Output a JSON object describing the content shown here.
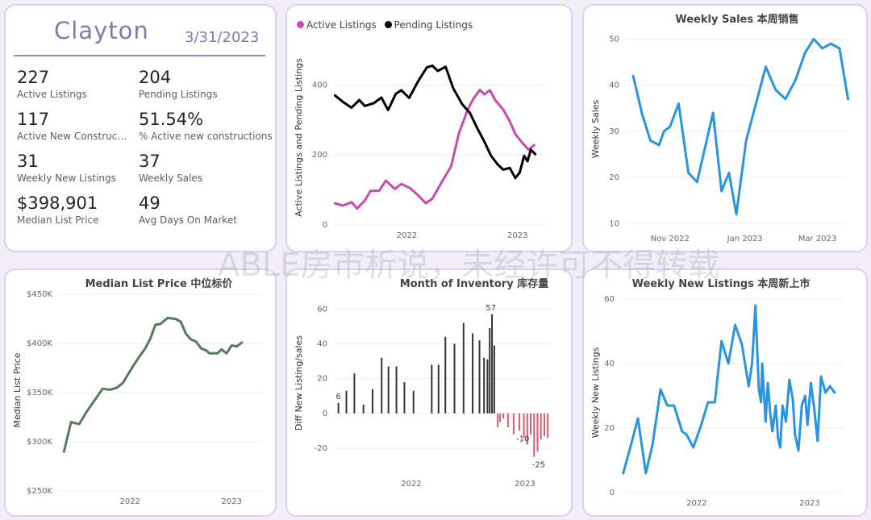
{
  "kpi": {
    "city": "Clayton",
    "date": "3/31/2023",
    "items": [
      {
        "value": "227",
        "label": "Active Listings"
      },
      {
        "value": "204",
        "label": "Pending Listings"
      },
      {
        "value": "117",
        "label": "Active New Constructi..."
      },
      {
        "value": "51.54%",
        "label": "% Active new constructions"
      },
      {
        "value": "31",
        "label": "Weekly New Listings"
      },
      {
        "value": "37",
        "label": "Weekly Sales"
      },
      {
        "value": "$398,901",
        "label": "Median List Price"
      },
      {
        "value": "49",
        "label": "Avg Days On Market"
      }
    ]
  },
  "watermark": "ABLE房市析说，未经许可不得转载",
  "chart_data": [
    {
      "id": "active_pending",
      "type": "line",
      "title": "",
      "legend": [
        "Active Listings",
        "Pending Listings"
      ],
      "colors": [
        "#cc4aae",
        "#000000"
      ],
      "xlabel": "",
      "ylabel": "Active Listings and Pending Listings",
      "x_range": [
        2021.34,
        2023.25
      ],
      "ylim": [
        0,
        500
      ],
      "y_ticks": [
        0,
        200,
        400
      ],
      "x_ticks": [
        {
          "value": 2022.0,
          "label": "2022"
        },
        {
          "value": 2023.0,
          "label": "2023"
        }
      ],
      "series": [
        {
          "name": "Active Listings",
          "points": [
            [
              2021.35,
              62
            ],
            [
              2021.42,
              55
            ],
            [
              2021.5,
              65
            ],
            [
              2021.55,
              47
            ],
            [
              2021.62,
              70
            ],
            [
              2021.67,
              97
            ],
            [
              2021.75,
              98
            ],
            [
              2021.81,
              127
            ],
            [
              2021.89,
              103
            ],
            [
              2021.95,
              117
            ],
            [
              2022.03,
              105
            ],
            [
              2022.1,
              85
            ],
            [
              2022.17,
              62
            ],
            [
              2022.23,
              75
            ],
            [
              2022.32,
              125
            ],
            [
              2022.4,
              168
            ],
            [
              2022.47,
              262
            ],
            [
              2022.55,
              330
            ],
            [
              2022.6,
              360
            ],
            [
              2022.66,
              386
            ],
            [
              2022.7,
              373
            ],
            [
              2022.75,
              385
            ],
            [
              2022.8,
              356
            ],
            [
              2022.87,
              330
            ],
            [
              2022.93,
              296
            ],
            [
              2022.98,
              260
            ],
            [
              2023.04,
              236
            ],
            [
              2023.1,
              215
            ],
            [
              2023.15,
              228
            ]
          ]
        },
        {
          "name": "Pending Listings",
          "points": [
            [
              2021.35,
              370
            ],
            [
              2021.42,
              352
            ],
            [
              2021.5,
              335
            ],
            [
              2021.57,
              357
            ],
            [
              2021.62,
              340
            ],
            [
              2021.7,
              348
            ],
            [
              2021.77,
              364
            ],
            [
              2021.83,
              328
            ],
            [
              2021.9,
              375
            ],
            [
              2021.95,
              385
            ],
            [
              2022.02,
              363
            ],
            [
              2022.1,
              410
            ],
            [
              2022.18,
              450
            ],
            [
              2022.23,
              455
            ],
            [
              2022.28,
              440
            ],
            [
              2022.35,
              452
            ],
            [
              2022.42,
              390
            ],
            [
              2022.5,
              345
            ],
            [
              2022.57,
              320
            ],
            [
              2022.63,
              280
            ],
            [
              2022.7,
              238
            ],
            [
              2022.76,
              198
            ],
            [
              2022.82,
              173
            ],
            [
              2022.87,
              158
            ],
            [
              2022.93,
              163
            ],
            [
              2022.98,
              134
            ],
            [
              2023.02,
              150
            ],
            [
              2023.06,
              198
            ],
            [
              2023.09,
              182
            ],
            [
              2023.12,
              215
            ],
            [
              2023.16,
              202
            ]
          ]
        }
      ]
    },
    {
      "id": "weekly_sales",
      "type": "line",
      "title": "Weekly Sales 本周销售",
      "xlabel": "",
      "ylabel": "Weekly Sales",
      "colors": [
        "#2b94de"
      ],
      "x_range": [
        -6,
        174
      ],
      "ylim": [
        9,
        52
      ],
      "y_ticks": [
        10,
        20,
        30,
        40,
        50
      ],
      "x_ticks": [
        {
          "value": 30,
          "label": "Nov 2022"
        },
        {
          "value": 91,
          "label": "Jan 2023"
        },
        {
          "value": 150,
          "label": "Mar 2023"
        }
      ],
      "series": [
        {
          "name": "Weekly Sales",
          "points": [
            [
              0,
              42
            ],
            [
              7,
              34
            ],
            [
              14,
              28
            ],
            [
              21,
              27
            ],
            [
              25,
              30
            ],
            [
              30,
              31
            ],
            [
              37,
              36
            ],
            [
              45,
              21
            ],
            [
              52,
              19
            ],
            [
              59,
              27
            ],
            [
              65,
              34
            ],
            [
              72,
              17
            ],
            [
              78,
              21
            ],
            [
              84,
              12
            ],
            [
              92,
              28
            ],
            [
              100,
              36
            ],
            [
              108,
              44
            ],
            [
              116,
              39
            ],
            [
              124,
              37
            ],
            [
              132,
              41
            ],
            [
              140,
              47
            ],
            [
              147,
              50
            ],
            [
              154,
              48
            ],
            [
              161,
              49
            ],
            [
              168,
              48
            ],
            [
              175,
              37
            ]
          ]
        }
      ]
    },
    {
      "id": "median_list_price",
      "type": "line",
      "title": "Median List Price  中位标价",
      "xlabel": "",
      "ylabel": "Median List Price",
      "colors": [
        "#557a5e"
      ],
      "x_range": [
        2021.3,
        2023.3
      ],
      "ylim": [
        250000,
        455000
      ],
      "y_ticks": [
        {
          "value": 250000,
          "label": "$250K"
        },
        {
          "value": 300000,
          "label": "$300K"
        },
        {
          "value": 350000,
          "label": "$350K"
        },
        {
          "value": 400000,
          "label": "$400K"
        },
        {
          "value": 450000,
          "label": "$450K"
        }
      ],
      "x_ticks": [
        {
          "value": 2022.0,
          "label": "2022"
        },
        {
          "value": 2023.0,
          "label": "2023"
        }
      ],
      "series": [
        {
          "name": "Median List Price",
          "points": [
            [
              2021.35,
              290000
            ],
            [
              2021.42,
              320000
            ],
            [
              2021.5,
              318000
            ],
            [
              2021.57,
              330000
            ],
            [
              2021.65,
              342000
            ],
            [
              2021.73,
              354000
            ],
            [
              2021.8,
              353000
            ],
            [
              2021.87,
              355000
            ],
            [
              2021.93,
              360000
            ],
            [
              2022.0,
              372000
            ],
            [
              2022.08,
              385000
            ],
            [
              2022.15,
              395000
            ],
            [
              2022.2,
              405000
            ],
            [
              2022.25,
              419000
            ],
            [
              2022.3,
              420000
            ],
            [
              2022.37,
              426000
            ],
            [
              2022.45,
              425000
            ],
            [
              2022.5,
              422000
            ],
            [
              2022.55,
              410000
            ],
            [
              2022.6,
              404000
            ],
            [
              2022.65,
              402000
            ],
            [
              2022.7,
              395000
            ],
            [
              2022.75,
              393000
            ],
            [
              2022.78,
              390000
            ],
            [
              2022.86,
              390000
            ],
            [
              2022.9,
              394000
            ],
            [
              2022.95,
              390000
            ],
            [
              2023.0,
              398000
            ],
            [
              2023.05,
              397000
            ],
            [
              2023.1,
              401000
            ]
          ]
        }
      ]
    },
    {
      "id": "month_of_inventory",
      "type": "bar",
      "title": "Month of Inventory 库存量",
      "xlabel": "",
      "ylabel": "Diff New Listing/sales",
      "x_range": [
        2021.32,
        2023.22
      ],
      "ylim": [
        -27,
        62
      ],
      "y_ticks": [
        -20,
        0,
        20,
        40,
        60
      ],
      "x_ticks": [
        {
          "value": 2022.0,
          "label": "2022"
        },
        {
          "value": 2023.0,
          "label": "2023"
        }
      ],
      "colors": {
        "positive": "#333333",
        "negative": "#d95a6a"
      },
      "annotations": [
        {
          "x": 2021.36,
          "y": 6,
          "label": "6"
        },
        {
          "x": 2022.7,
          "y": 57,
          "label": "57"
        },
        {
          "x": 2022.98,
          "y": -10,
          "label": "-10"
        },
        {
          "x": 2023.12,
          "y": -25,
          "label": "-25"
        }
      ],
      "bars": [
        [
          2021.36,
          6
        ],
        [
          2021.43,
          13
        ],
        [
          2021.5,
          23
        ],
        [
          2021.58,
          5
        ],
        [
          2021.66,
          14
        ],
        [
          2021.74,
          32
        ],
        [
          2021.8,
          27
        ],
        [
          2021.87,
          27
        ],
        [
          2021.94,
          18
        ],
        [
          2022.02,
          13
        ],
        [
          2022.18,
          28
        ],
        [
          2022.24,
          28
        ],
        [
          2022.3,
          44
        ],
        [
          2022.38,
          40
        ],
        [
          2022.46,
          52
        ],
        [
          2022.54,
          46
        ],
        [
          2022.6,
          42
        ],
        [
          2022.64,
          32
        ],
        [
          2022.67,
          31
        ],
        [
          2022.69,
          49
        ],
        [
          2022.71,
          57
        ],
        [
          2022.73,
          39
        ],
        [
          2022.76,
          -8
        ],
        [
          2022.78,
          -5
        ],
        [
          2022.81,
          -3
        ],
        [
          2022.85,
          -8
        ],
        [
          2022.9,
          -12
        ],
        [
          2022.95,
          -10
        ],
        [
          2022.99,
          -14
        ],
        [
          2023.02,
          -18
        ],
        [
          2023.05,
          -12
        ],
        [
          2023.08,
          -25
        ],
        [
          2023.11,
          -22
        ],
        [
          2023.14,
          -15
        ],
        [
          2023.17,
          -13
        ],
        [
          2023.2,
          -14
        ]
      ]
    },
    {
      "id": "weekly_new_listings",
      "type": "line",
      "title": "Weekly New Listings  本周新上市",
      "xlabel": "",
      "ylabel": "Weekly New Listings",
      "colors": [
        "#2b94de"
      ],
      "x_range": [
        2021.33,
        2023.3
      ],
      "ylim": [
        0,
        62
      ],
      "y_ticks": [
        0,
        20,
        40,
        60
      ],
      "x_ticks": [
        {
          "value": 2022.0,
          "label": "2022"
        },
        {
          "value": 2023.0,
          "label": "2023"
        }
      ],
      "series": [
        {
          "name": "Weekly New Listings",
          "points": [
            [
              2021.35,
              6
            ],
            [
              2021.42,
              15
            ],
            [
              2021.48,
              23
            ],
            [
              2021.55,
              6
            ],
            [
              2021.61,
              15
            ],
            [
              2021.68,
              32
            ],
            [
              2021.74,
              27
            ],
            [
              2021.8,
              27
            ],
            [
              2021.87,
              19
            ],
            [
              2021.91,
              18
            ],
            [
              2021.97,
              14
            ],
            [
              2022.04,
              21
            ],
            [
              2022.1,
              28
            ],
            [
              2022.16,
              28
            ],
            [
              2022.22,
              47
            ],
            [
              2022.28,
              40
            ],
            [
              2022.34,
              52
            ],
            [
              2022.4,
              46
            ],
            [
              2022.46,
              33
            ],
            [
              2022.49,
              40
            ],
            [
              2022.52,
              58
            ],
            [
              2022.55,
              32
            ],
            [
              2022.57,
              28
            ],
            [
              2022.58,
              40
            ],
            [
              2022.61,
              22
            ],
            [
              2022.63,
              34
            ],
            [
              2022.65,
              25
            ],
            [
              2022.67,
              19
            ],
            [
              2022.7,
              27
            ],
            [
              2022.72,
              17
            ],
            [
              2022.74,
              14
            ],
            [
              2022.76,
              27
            ],
            [
              2022.79,
              22
            ],
            [
              2022.82,
              35
            ],
            [
              2022.85,
              29
            ],
            [
              2022.87,
              18
            ],
            [
              2022.9,
              13
            ],
            [
              2022.93,
              27
            ],
            [
              2022.96,
              30
            ],
            [
              2022.98,
              21
            ],
            [
              2023.01,
              34
            ],
            [
              2023.04,
              26
            ],
            [
              2023.07,
              16
            ],
            [
              2023.1,
              36
            ],
            [
              2023.14,
              31
            ],
            [
              2023.18,
              33
            ],
            [
              2023.22,
              31
            ]
          ]
        }
      ]
    }
  ]
}
